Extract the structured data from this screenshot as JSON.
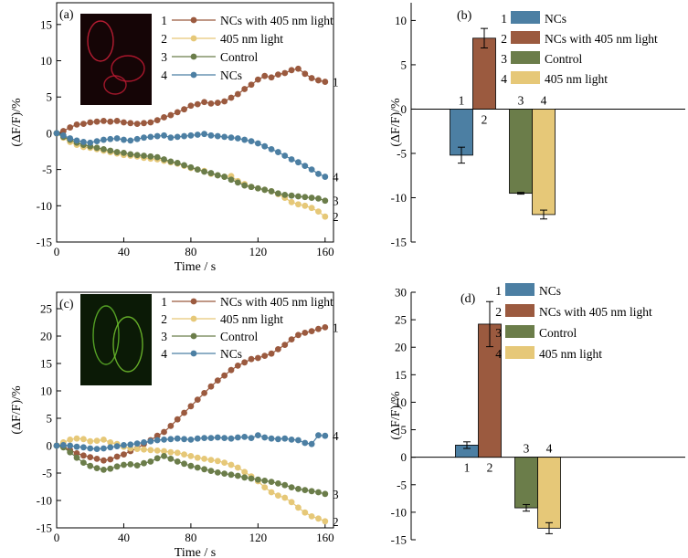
{
  "colors": {
    "ncs_light": "#9b5a3f",
    "light": "#e6c878",
    "control": "#6b7d4a",
    "ncs": "#4c7fa3"
  },
  "chart_data": [
    {
      "panel": "(a)",
      "type": "line",
      "xlabel": "Time / s",
      "ylabel": "(ΔF/F)/%",
      "xlim": [
        0,
        165
      ],
      "ylim": [
        -15,
        18
      ],
      "xticks": [
        0,
        40,
        80,
        120,
        160
      ],
      "yticks": [
        -15,
        -10,
        -5,
        0,
        5,
        10,
        15
      ],
      "legend": [
        {
          "num": "1",
          "label": "NCs with 405 nm light"
        },
        {
          "num": "2",
          "label": "405 nm light"
        },
        {
          "num": "3",
          "label": "Control"
        },
        {
          "num": "4",
          "label": "NCs"
        }
      ],
      "x": [
        0,
        4,
        8,
        12,
        16,
        20,
        24,
        28,
        32,
        36,
        40,
        44,
        48,
        52,
        56,
        60,
        64,
        68,
        72,
        76,
        80,
        84,
        88,
        92,
        96,
        100,
        104,
        108,
        112,
        116,
        120,
        124,
        128,
        132,
        136,
        140,
        144,
        148,
        152,
        156,
        160
      ],
      "series": [
        {
          "id": "1",
          "color_key": "ncs_light",
          "values": [
            0,
            0.3,
            0.8,
            1.2,
            1.3,
            1.5,
            1.6,
            1.7,
            1.6,
            1.7,
            1.5,
            1.4,
            1.3,
            1.4,
            1.5,
            1.8,
            2.2,
            2.5,
            2.9,
            3.3,
            3.8,
            4.0,
            4.3,
            4.1,
            4.2,
            4.4,
            4.9,
            5.4,
            6.1,
            6.7,
            7.4,
            7.9,
            7.7,
            8.1,
            8.3,
            8.7,
            8.9,
            8.2,
            7.6,
            7.3,
            7.1
          ]
        },
        {
          "id": "2",
          "color_key": "light",
          "values": [
            0,
            -0.6,
            -1.2,
            -1.6,
            -1.9,
            -2.0,
            -2.2,
            -2.4,
            -2.6,
            -2.8,
            -3.0,
            -3.1,
            -3.2,
            -3.4,
            -3.5,
            -3.6,
            -3.8,
            -4.0,
            -4.2,
            -4.5,
            -4.8,
            -5.0,
            -5.2,
            -5.6,
            -5.8,
            -6.0,
            -5.9,
            -6.6,
            -7.0,
            -7.4,
            -7.6,
            -7.8,
            -8.0,
            -8.4,
            -8.9,
            -9.5,
            -9.8,
            -10.0,
            -10.3,
            -10.8,
            -11.5
          ]
        },
        {
          "id": "3",
          "color_key": "control",
          "values": [
            0,
            -0.5,
            -0.9,
            -1.3,
            -1.6,
            -1.8,
            -2.0,
            -2.2,
            -2.4,
            -2.6,
            -2.7,
            -2.9,
            -3.0,
            -3.1,
            -3.2,
            -3.3,
            -3.6,
            -3.9,
            -4.1,
            -4.4,
            -4.7,
            -5.0,
            -5.3,
            -5.5,
            -5.8,
            -6.0,
            -6.4,
            -6.8,
            -7.2,
            -7.4,
            -7.6,
            -7.8,
            -8.0,
            -8.3,
            -8.5,
            -8.6,
            -8.7,
            -8.8,
            -8.9,
            -9.0,
            -9.3
          ]
        },
        {
          "id": "4",
          "color_key": "ncs",
          "values": [
            0,
            -0.3,
            -0.7,
            -1.0,
            -1.2,
            -1.3,
            -1.1,
            -0.9,
            -0.8,
            -0.7,
            -0.9,
            -1.0,
            -0.8,
            -0.6,
            -0.5,
            -0.4,
            -0.3,
            -0.6,
            -0.5,
            -0.4,
            -0.3,
            -0.2,
            -0.1,
            -0.3,
            -0.4,
            -0.5,
            -0.6,
            -0.7,
            -0.9,
            -1.1,
            -1.4,
            -1.8,
            -2.2,
            -2.6,
            -3.1,
            -3.6,
            -4.0,
            -4.5,
            -5.0,
            -5.6,
            -6.0
          ]
        }
      ]
    },
    {
      "panel": "(b)",
      "type": "bar",
      "ylabel": "(ΔF/F)/%",
      "ylim": [
        -15,
        12
      ],
      "yticks": [
        -15,
        -10,
        -5,
        0,
        5,
        10
      ],
      "legend": [
        {
          "num": "1",
          "label": "NCs"
        },
        {
          "num": "2",
          "label": "NCs with 405 nm light"
        },
        {
          "num": "3",
          "label": "Control"
        },
        {
          "num": "4",
          "label": "405 nm light"
        }
      ],
      "bars": [
        {
          "label": "1",
          "color_key": "ncs",
          "value": -5.2,
          "error": 0.9
        },
        {
          "label": "2",
          "color_key": "ncs_light",
          "value": 8.0,
          "error": 1.1
        },
        {
          "label": "3",
          "color_key": "control",
          "value": -9.5,
          "error": 0.1
        },
        {
          "label": "4",
          "color_key": "light",
          "value": -11.9,
          "error": 0.5
        }
      ]
    },
    {
      "panel": "(c)",
      "type": "line",
      "xlabel": "Time / s",
      "ylabel": "(ΔF/F)/%",
      "xlim": [
        0,
        165
      ],
      "ylim": [
        -15,
        28
      ],
      "xticks": [
        0,
        40,
        80,
        120,
        160
      ],
      "yticks": [
        -15,
        -10,
        -5,
        0,
        5,
        10,
        15,
        20,
        25
      ],
      "legend": [
        {
          "num": "1",
          "label": "NCs with 405 nm light"
        },
        {
          "num": "2",
          "label": "405 nm light"
        },
        {
          "num": "3",
          "label": "Control"
        },
        {
          "num": "4",
          "label": "NCs"
        }
      ],
      "x": [
        0,
        4,
        8,
        12,
        16,
        20,
        24,
        28,
        32,
        36,
        40,
        44,
        48,
        52,
        56,
        60,
        64,
        68,
        72,
        76,
        80,
        84,
        88,
        92,
        96,
        100,
        104,
        108,
        112,
        116,
        120,
        124,
        128,
        132,
        136,
        140,
        144,
        148,
        152,
        156,
        160
      ],
      "series": [
        {
          "id": "1",
          "color_key": "ncs_light",
          "values": [
            0,
            -0.2,
            -0.8,
            -1.4,
            -1.8,
            -2.1,
            -2.4,
            -2.7,
            -2.5,
            -2.0,
            -1.6,
            -1.0,
            -0.5,
            0.3,
            1.0,
            1.8,
            2.5,
            3.6,
            4.8,
            6.0,
            7.2,
            8.4,
            9.6,
            10.8,
            11.9,
            12.8,
            13.8,
            14.6,
            15.2,
            15.8,
            16.0,
            16.4,
            16.8,
            17.6,
            18.4,
            19.4,
            20.2,
            20.6,
            20.9,
            21.3,
            21.6
          ]
        },
        {
          "id": "2",
          "color_key": "light",
          "values": [
            0,
            0.6,
            1.1,
            1.3,
            1.2,
            0.8,
            0.9,
            1.1,
            0.6,
            0.3,
            -0.2,
            -0.5,
            -0.6,
            -0.7,
            -0.8,
            -0.9,
            -1.0,
            -1.2,
            -1.3,
            -1.6,
            -1.9,
            -2.2,
            -2.4,
            -2.6,
            -2.8,
            -3.1,
            -3.5,
            -4.0,
            -4.8,
            -5.6,
            -6.5,
            -7.6,
            -8.5,
            -9.1,
            -9.5,
            -10.3,
            -11.3,
            -12.2,
            -12.9,
            -13.3,
            -13.8
          ]
        },
        {
          "id": "3",
          "color_key": "control",
          "values": [
            0,
            -0.3,
            -1.2,
            -2.2,
            -3.1,
            -3.7,
            -4.1,
            -4.4,
            -4.2,
            -3.8,
            -3.5,
            -3.4,
            -3.6,
            -3.2,
            -2.9,
            -2.3,
            -1.9,
            -2.4,
            -2.9,
            -3.3,
            -3.7,
            -4.0,
            -4.3,
            -4.6,
            -4.9,
            -5.1,
            -5.3,
            -5.5,
            -5.8,
            -6.0,
            -6.2,
            -6.4,
            -6.6,
            -6.9,
            -7.2,
            -7.6,
            -7.9,
            -8.1,
            -8.3,
            -8.5,
            -8.8
          ]
        },
        {
          "id": "4",
          "color_key": "ncs",
          "values": [
            0,
            0.1,
            0.0,
            -0.2,
            -0.3,
            -0.5,
            -0.6,
            -0.5,
            -0.3,
            -0.1,
            0.1,
            0.2,
            0.4,
            0.6,
            0.8,
            1.0,
            1.1,
            1.2,
            1.3,
            1.2,
            1.1,
            1.3,
            1.4,
            1.4,
            1.5,
            1.4,
            1.3,
            1.5,
            1.6,
            1.4,
            1.9,
            1.5,
            1.3,
            1.2,
            1.3,
            1.1,
            1.0,
            0.5,
            0.3,
            1.9,
            1.8
          ]
        }
      ]
    },
    {
      "panel": "(d)",
      "type": "bar",
      "ylabel": "(ΔF/F)/%",
      "ylim": [
        -15,
        30
      ],
      "yticks": [
        -15,
        -10,
        -5,
        0,
        5,
        10,
        15,
        20,
        25,
        30
      ],
      "legend": [
        {
          "num": "1",
          "label": "NCs"
        },
        {
          "num": "2",
          "label": "NCs with 405 nm light"
        },
        {
          "num": "3",
          "label": "Control"
        },
        {
          "num": "4",
          "label": "405 nm light"
        }
      ],
      "bars": [
        {
          "label": "1",
          "color_key": "ncs",
          "value": 2.2,
          "error": 0.6
        },
        {
          "label": "2",
          "color_key": "ncs_light",
          "value": 24.2,
          "error": 4.1
        },
        {
          "label": "3",
          "color_key": "control",
          "value": -9.2,
          "error": 0.6
        },
        {
          "label": "4",
          "color_key": "light",
          "value": -12.9,
          "error": 1.0
        }
      ]
    }
  ]
}
